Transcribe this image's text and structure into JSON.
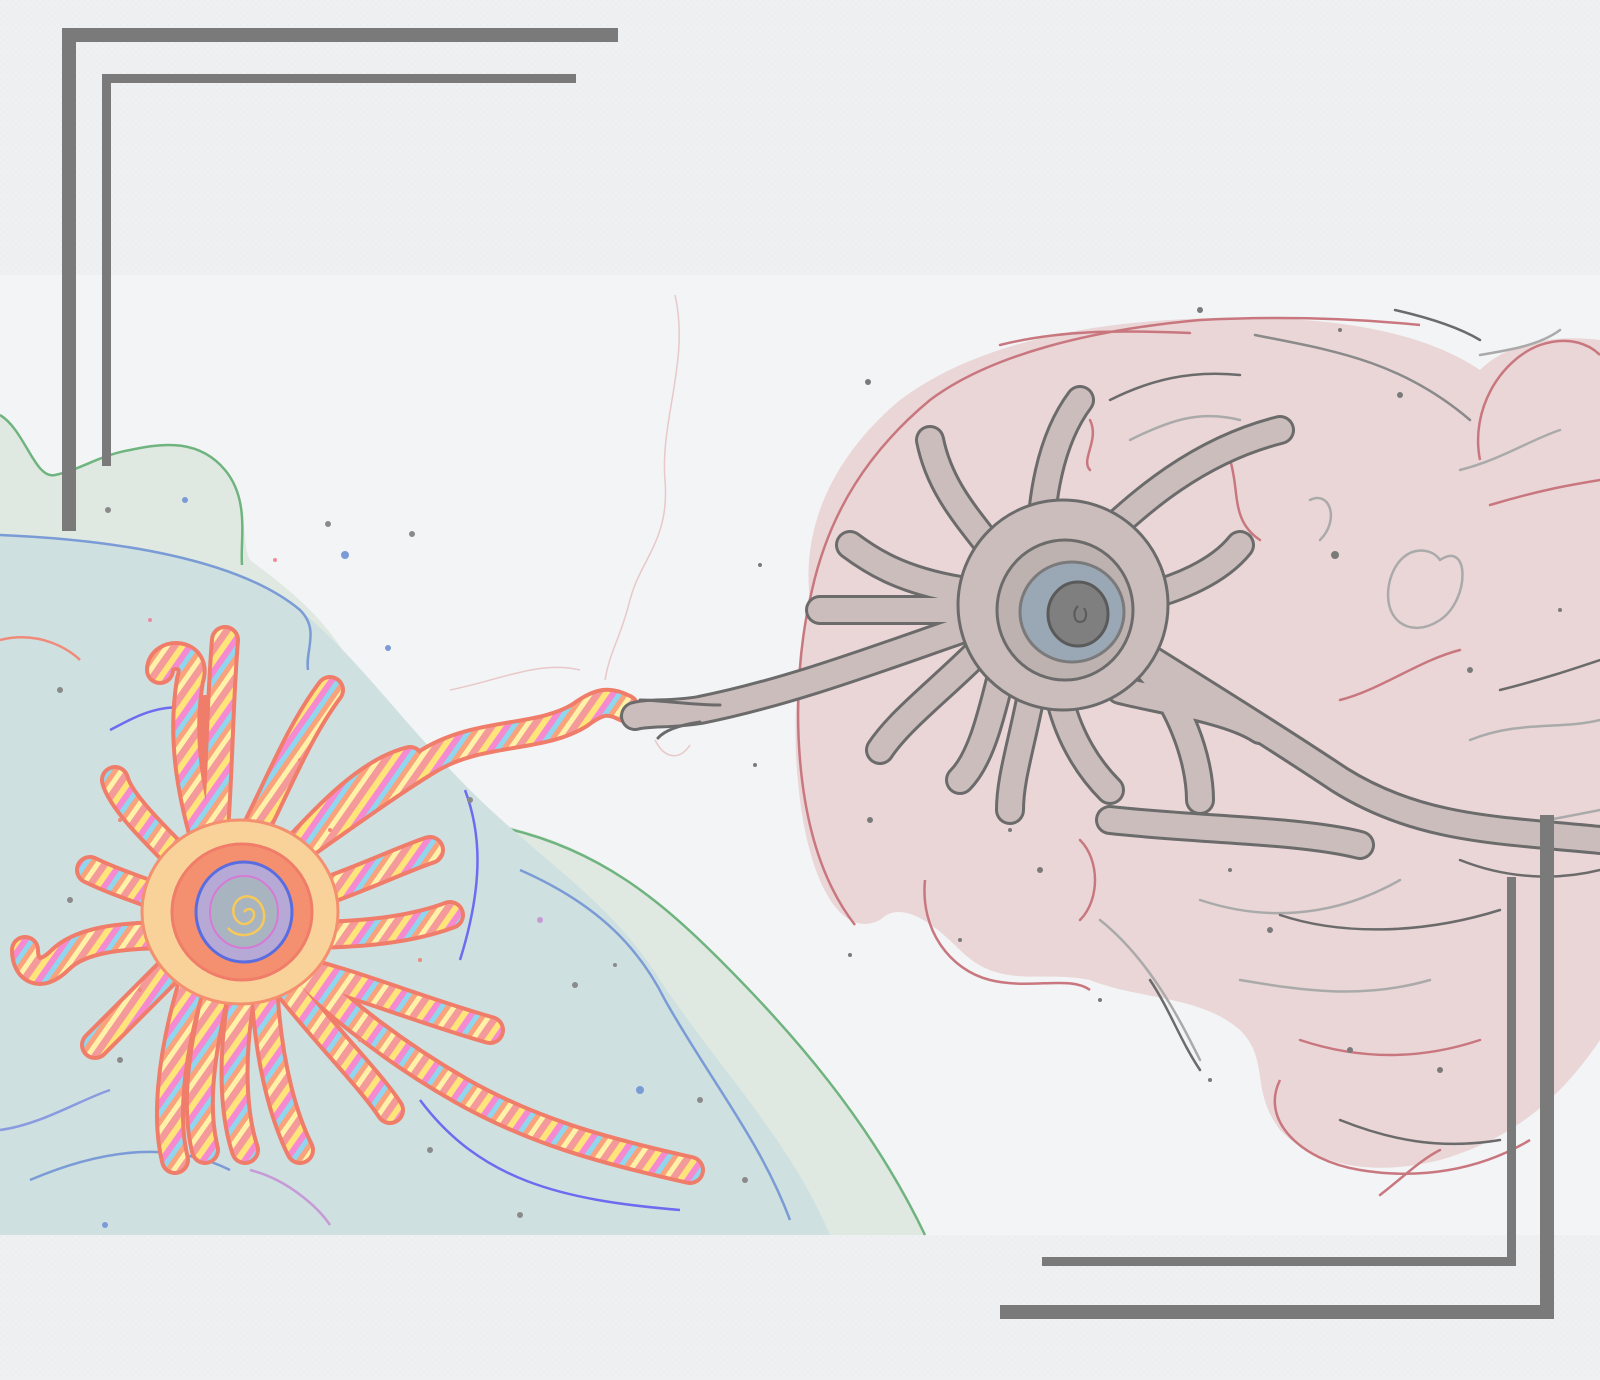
{
  "colors": {
    "paper": "#eef0f1",
    "band": "#f3f4f6",
    "frame": "#7a7a7a",
    "hill_green": "#dfe9e2",
    "hill_green_line": "#6fb47f",
    "hill_teal": "#cfe0e0",
    "hill_blue_line": "#7a9bd6",
    "colorful_neuron": "#f4906f",
    "colorful_neuron_fill": "#f9d29a",
    "brain_fill": "#ead6d7",
    "brain_line": "#c9777f",
    "gray_neuron": "#cbbdbc",
    "gray_line": "#6b6b6b",
    "nucleus_blue": "#9aa7b5"
  },
  "icons": {
    "frame_top_left": "corner-bracket",
    "frame_bottom_right": "corner-bracket",
    "colorful_neuron": "neuron",
    "gray_neuron": "neuron",
    "brain": "brain"
  }
}
